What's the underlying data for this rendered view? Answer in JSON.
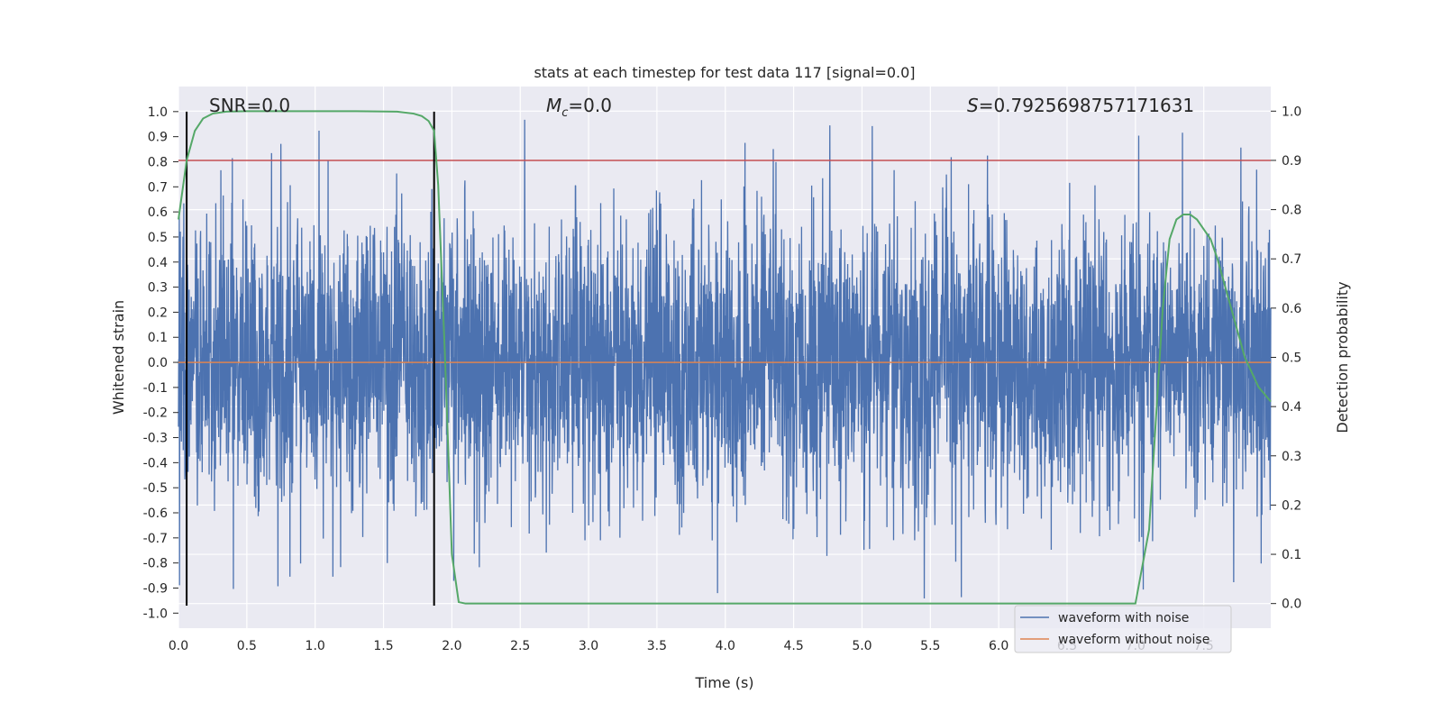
{
  "chart_data": {
    "type": "line",
    "title": "stats at each timestep for test data 117 [signal=0.0]",
    "xlabel": "Time (s)",
    "ylabel": "Whitened strain",
    "y2label": "Detection probability",
    "xlim": [
      0.0,
      7.99
    ],
    "ylim": [
      -1.06,
      1.1
    ],
    "y2lim": [
      -0.05,
      1.05
    ],
    "xticks": [
      "0.0",
      "0.5",
      "1.0",
      "1.5",
      "2.0",
      "2.5",
      "3.0",
      "3.5",
      "4.0",
      "4.5",
      "5.0",
      "5.5",
      "6.0",
      "6.5",
      "7.0",
      "7.5"
    ],
    "yticks": [
      "1.0",
      "0.9",
      "0.8",
      "0.7",
      "0.6",
      "0.5",
      "0.4",
      "0.3",
      "0.2",
      "0.1",
      "0.0",
      "-0.1",
      "-0.2",
      "-0.3",
      "-0.4",
      "-0.5",
      "-0.6",
      "-0.7",
      "-0.8",
      "-0.9",
      "-1.0"
    ],
    "y2ticks": [
      "1.0",
      "0.9",
      "0.8",
      "0.7",
      "0.6",
      "0.5",
      "0.4",
      "0.3",
      "0.2",
      "0.1",
      "0.0"
    ],
    "annotations": {
      "snr": "SNR=0.0",
      "mc_symbol": "M",
      "mc_sub": "c",
      "mc_value": "=0.0",
      "s_symbol": "S",
      "s_value": "=0.7925698757171631"
    },
    "threshold": {
      "y2": 0.9,
      "color": "#c44e52"
    },
    "vlines": [
      0.06,
      1.87
    ],
    "series": [
      {
        "name": "waveform with noise",
        "color": "#4c72b0",
        "kind": "noise",
        "envelope": 0.45,
        "peak": 1.0
      },
      {
        "name": "waveform without noise",
        "color": "#dd8452",
        "kind": "flat",
        "value": 0.0
      },
      {
        "name": "detection probability",
        "color": "#55a868",
        "axis": "y2",
        "x": [
          0.0,
          0.06,
          0.12,
          0.18,
          0.25,
          0.35,
          0.5,
          0.7,
          1.0,
          1.3,
          1.6,
          1.72,
          1.78,
          1.83,
          1.87,
          1.9,
          1.95,
          2.0,
          2.05,
          2.1,
          2.2,
          3.0,
          4.0,
          5.0,
          6.0,
          7.0,
          7.1,
          7.2,
          7.25,
          7.3,
          7.35,
          7.4,
          7.45,
          7.5,
          7.55,
          7.6,
          7.7,
          7.8,
          7.9,
          7.99
        ],
        "y": [
          0.78,
          0.9,
          0.96,
          0.985,
          0.995,
          0.999,
          1.0,
          1.0,
          1.0,
          1.0,
          0.999,
          0.995,
          0.99,
          0.98,
          0.96,
          0.85,
          0.5,
          0.1,
          0.003,
          0.0,
          0.0,
          0.0,
          0.0,
          0.0,
          0.0,
          0.0,
          0.15,
          0.6,
          0.74,
          0.78,
          0.79,
          0.79,
          0.78,
          0.76,
          0.74,
          0.7,
          0.6,
          0.5,
          0.44,
          0.41
        ]
      }
    ],
    "legend_location": "lower-right"
  }
}
